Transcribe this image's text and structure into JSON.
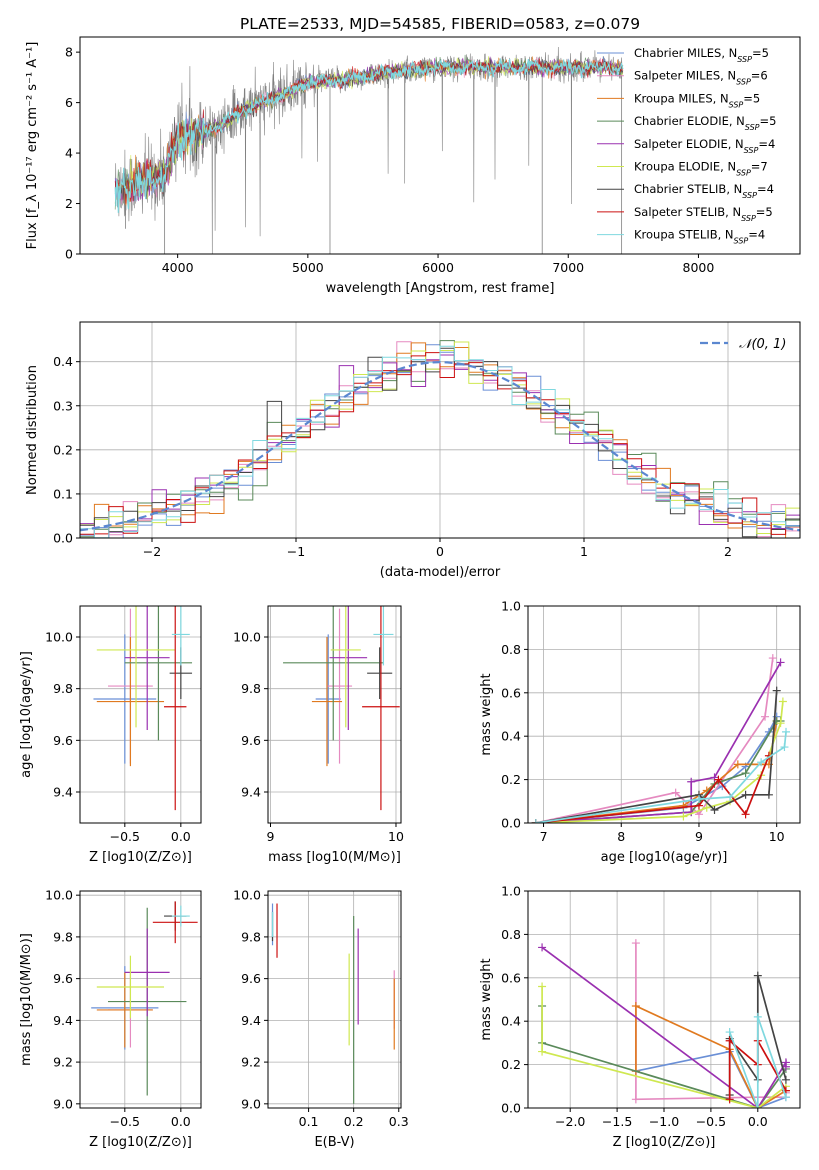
{
  "figure": {
    "title": "PLATE=2533, MJD=54585, FIBERID=0583, z=0.079"
  },
  "colors": {
    "Chabrier MILES": "#6a8fd6",
    "Salpeter MILES": "#e58ac0",
    "Kroupa MILES": "#e07a20",
    "Chabrier ELODIE": "#5a8a5a",
    "Salpeter ELODIE": "#9a30b0",
    "Kroupa ELODIE": "#cfe850",
    "Chabrier STELIB": "#444444",
    "Salpeter STELIB": "#cc1111",
    "Kroupa STELIB": "#7fd8df"
  },
  "chart_data": [
    {
      "id": "spectrum",
      "type": "line",
      "xlabel": "wavelength [Angstrom, rest frame]",
      "ylabel": "Flux [f_λ 10⁻¹⁷ erg cm⁻² s⁻¹ A⁻¹]",
      "xlim": [
        3250,
        8780
      ],
      "ylim": [
        0,
        8.6
      ],
      "xticks": [
        4000,
        5000,
        6000,
        7000,
        8000
      ],
      "yticks": [
        0,
        2,
        4,
        6,
        8
      ],
      "grid": false,
      "legend_position": "right",
      "data_color": "#808080",
      "continuum": {
        "x": [
          3520,
          3700,
          3900,
          4000,
          4300,
          4500,
          4800,
          5000,
          5300,
          5600,
          6000,
          6500,
          7000,
          7300,
          7420
        ],
        "y": [
          2.6,
          2.8,
          3.2,
          4.6,
          5.0,
          5.7,
          6.3,
          6.8,
          6.9,
          7.2,
          7.4,
          7.4,
          7.4,
          7.4,
          7.3
        ]
      },
      "xrange_data": [
        3520,
        7420
      ],
      "series": [
        {
          "name": "Chabrier MILES, N_SSP=5"
        },
        {
          "name": "Salpeter MILES, N_SSP=6"
        },
        {
          "name": "Kroupa MILES, N_SSP=5"
        },
        {
          "name": "Chabrier ELODIE, N_SSP=5"
        },
        {
          "name": "Salpeter ELODIE, N_SSP=4"
        },
        {
          "name": "Kroupa ELODIE, N_SSP=7"
        },
        {
          "name": "Chabrier STELIB, N_SSP=4"
        },
        {
          "name": "Salpeter STELIB, N_SSP=5"
        },
        {
          "name": "Kroupa STELIB, N_SSP=4"
        }
      ]
    },
    {
      "id": "residuals",
      "type": "line",
      "xlabel": "(data-model)/error",
      "ylabel": "Normed distribution",
      "xlim": [
        -2.5,
        2.5
      ],
      "ylim": [
        0,
        0.49
      ],
      "xticks": [
        -2,
        -1,
        0,
        1,
        2
      ],
      "yticks": [
        0.0,
        0.1,
        0.2,
        0.3,
        0.4
      ],
      "grid": true,
      "legend_position": "top-right",
      "gaussian_label": "𝒩(0, 1)",
      "gaussian_color": "#5b87d0"
    },
    {
      "id": "age_vs_Z",
      "type": "scatter",
      "xlabel": "Z [log10(Z/Z⊙)]",
      "ylabel": "age [log10(age/yr)]",
      "xlim": [
        -0.9,
        0.18
      ],
      "ylim": [
        9.28,
        10.12
      ],
      "xticks": [
        -0.5,
        0.0
      ],
      "yticks": [
        9.4,
        9.6,
        9.8,
        10.0
      ],
      "grid": true,
      "points": [
        {
          "name": "Chabrier MILES",
          "x": -0.5,
          "y": 9.76,
          "xerr": 0.28,
          "yerr": 0.25
        },
        {
          "name": "Salpeter MILES",
          "x": -0.45,
          "y": 9.81,
          "xerr": 0.2,
          "yerr": 0.3
        },
        {
          "name": "Kroupa MILES",
          "x": -0.45,
          "y": 9.75,
          "xerr": 0.3,
          "yerr": 0.25
        },
        {
          "name": "Chabrier ELODIE",
          "x": -0.2,
          "y": 9.9,
          "xerr": 0.3,
          "yerr": 0.3
        },
        {
          "name": "Salpeter ELODIE",
          "x": -0.3,
          "y": 9.92,
          "xerr": 0.2,
          "yerr": 0.28
        },
        {
          "name": "Kroupa ELODIE",
          "x": -0.4,
          "y": 9.95,
          "xerr": 0.35,
          "yerr": 0.3
        },
        {
          "name": "Chabrier STELIB",
          "x": 0.0,
          "y": 9.86,
          "xerr": 0.1,
          "yerr": 0.1
        },
        {
          "name": "Salpeter STELIB",
          "x": -0.05,
          "y": 9.73,
          "xerr": 0.1,
          "yerr": 0.4
        },
        {
          "name": "Kroupa STELIB",
          "x": 0.0,
          "y": 10.01,
          "xerr": 0.08,
          "yerr": 0.12
        }
      ]
    },
    {
      "id": "age_vs_mass",
      "type": "scatter",
      "xlabel": "mass [log10(M/M⊙)]",
      "ylabel": "",
      "xlim": [
        8.98,
        10.04
      ],
      "ylim": [
        9.28,
        10.12
      ],
      "xticks": [
        9,
        10
      ],
      "yticks": [
        9.4,
        9.6,
        9.8,
        10.0
      ],
      "grid": true,
      "points": [
        {
          "name": "Chabrier MILES",
          "x": 9.46,
          "y": 9.76,
          "xerr": 0.1,
          "yerr": 0.25
        },
        {
          "name": "Salpeter MILES",
          "x": 9.55,
          "y": 9.81,
          "xerr": 0.1,
          "yerr": 0.3
        },
        {
          "name": "Kroupa MILES",
          "x": 9.45,
          "y": 9.75,
          "xerr": 0.12,
          "yerr": 0.25
        },
        {
          "name": "Chabrier ELODIE",
          "x": 9.5,
          "y": 9.9,
          "xerr": 0.4,
          "yerr": 0.3
        },
        {
          "name": "Salpeter ELODIE",
          "x": 9.62,
          "y": 9.92,
          "xerr": 0.15,
          "yerr": 0.28
        },
        {
          "name": "Kroupa ELODIE",
          "x": 9.6,
          "y": 9.95,
          "xerr": 0.12,
          "yerr": 0.3
        },
        {
          "name": "Chabrier STELIB",
          "x": 9.87,
          "y": 9.86,
          "xerr": 0.1,
          "yerr": 0.1
        },
        {
          "name": "Salpeter STELIB",
          "x": 9.88,
          "y": 9.73,
          "xerr": 0.15,
          "yerr": 0.4
        },
        {
          "name": "Kroupa STELIB",
          "x": 9.9,
          "y": 10.01,
          "xerr": 0.08,
          "yerr": 0.12
        }
      ]
    },
    {
      "id": "weight_vs_age",
      "type": "line",
      "xlabel": "age [log10(age/yr)]",
      "ylabel": "mass weight",
      "xlim": [
        6.8,
        10.3
      ],
      "ylim": [
        0,
        1
      ],
      "xticks": [
        7,
        8,
        9,
        10
      ],
      "yticks": [
        0.0,
        0.2,
        0.4,
        0.6,
        0.8,
        1.0
      ],
      "grid": true,
      "series": [
        {
          "name": "Chabrier MILES",
          "x": [
            6.9,
            8.8,
            9.3,
            9.6,
            9.9,
            10.0
          ],
          "y": [
            0.0,
            0.07,
            0.17,
            0.26,
            0.42,
            0.49
          ]
        },
        {
          "name": "Salpeter MILES",
          "x": [
            6.9,
            8.7,
            9.0,
            9.85,
            9.95
          ],
          "y": [
            0.0,
            0.14,
            0.04,
            0.49,
            0.76
          ]
        },
        {
          "name": "Kroupa MILES",
          "x": [
            6.9,
            8.8,
            9.1,
            9.5,
            9.9,
            10.0
          ],
          "y": [
            0.0,
            0.08,
            0.15,
            0.27,
            0.27,
            0.47
          ]
        },
        {
          "name": "Chabrier ELODIE",
          "x": [
            6.9,
            8.9,
            9.2,
            9.6,
            10.0,
            10.05
          ],
          "y": [
            0.0,
            0.05,
            0.18,
            0.23,
            0.47,
            0.47
          ]
        },
        {
          "name": "Salpeter ELODIE",
          "x": [
            6.9,
            8.9,
            8.9,
            9.2,
            10.05
          ],
          "y": [
            0.0,
            0.05,
            0.19,
            0.21,
            0.74
          ]
        },
        {
          "name": "Kroupa ELODIE",
          "x": [
            6.9,
            8.8,
            9.1,
            9.4,
            9.8,
            10.05,
            10.08
          ],
          "y": [
            0.0,
            0.03,
            0.07,
            0.1,
            0.22,
            0.46,
            0.56
          ]
        },
        {
          "name": "Chabrier STELIB",
          "x": [
            6.9,
            9.0,
            9.2,
            9.6,
            9.9,
            10.0
          ],
          "y": [
            0.0,
            0.13,
            0.06,
            0.13,
            0.13,
            0.61
          ]
        },
        {
          "name": "Salpeter STELIB",
          "x": [
            6.9,
            9.0,
            9.25,
            9.6,
            9.9
          ],
          "y": [
            0.0,
            0.08,
            0.2,
            0.04,
            0.31
          ]
        },
        {
          "name": "Kroupa STELIB",
          "x": [
            6.9,
            9.0,
            9.4,
            9.8,
            10.1,
            10.12
          ],
          "y": [
            0.0,
            0.11,
            0.12,
            0.28,
            0.35,
            0.42
          ]
        }
      ]
    },
    {
      "id": "mass_vs_Z",
      "type": "scatter",
      "xlabel": "Z [log10(Z/Z⊙)]",
      "ylabel": "mass [log10(M/M⊙)]",
      "xlim": [
        -0.9,
        0.18
      ],
      "ylim": [
        8.98,
        10.02
      ],
      "xticks": [
        -0.5,
        0.0
      ],
      "yticks": [
        9.0,
        9.2,
        9.4,
        9.6,
        9.8,
        10.0
      ],
      "grid": true,
      "points": [
        {
          "name": "Chabrier MILES",
          "x": -0.5,
          "y": 9.46,
          "xerr": 0.3,
          "yerr": 0.2
        },
        {
          "name": "Salpeter MILES",
          "x": -0.45,
          "y": 9.45,
          "xerr": 0.2,
          "yerr": 0.18
        },
        {
          "name": "Kroupa MILES",
          "x": -0.5,
          "y": 9.45,
          "xerr": 0.25,
          "yerr": 0.18
        },
        {
          "name": "Chabrier ELODIE",
          "x": -0.3,
          "y": 9.49,
          "xerr": 0.35,
          "yerr": 0.45
        },
        {
          "name": "Salpeter ELODIE",
          "x": -0.3,
          "y": 9.63,
          "xerr": 0.2,
          "yerr": 0.21
        },
        {
          "name": "Kroupa ELODIE",
          "x": -0.45,
          "y": 9.56,
          "xerr": 0.3,
          "yerr": 0.15
        },
        {
          "name": "Chabrier STELIB",
          "x": -0.05,
          "y": 9.9,
          "xerr": 0.1,
          "yerr": 0.07
        },
        {
          "name": "Salpeter STELIB",
          "x": -0.05,
          "y": 9.87,
          "xerr": 0.2,
          "yerr": 0.1
        },
        {
          "name": "Kroupa STELIB",
          "x": 0.0,
          "y": 9.9,
          "xerr": 0.08,
          "yerr": 0.05
        }
      ]
    },
    {
      "id": "mass_vs_ebv",
      "type": "scatter",
      "xlabel": "E(B-V)",
      "ylabel": "",
      "xlim": [
        0.01,
        0.305
      ],
      "ylim": [
        8.98,
        10.02
      ],
      "xticks": [
        0.1,
        0.2,
        0.3
      ],
      "yticks": [
        9.0,
        9.2,
        9.4,
        9.6,
        9.8,
        10.0
      ],
      "grid": true,
      "points": [
        {
          "name": "Chabrier MILES",
          "x": 0.02,
          "y": 9.86,
          "yerr": 0.1
        },
        {
          "name": "Salpeter MILES",
          "x": 0.29,
          "y": 9.5,
          "yerr": 0.14
        },
        {
          "name": "Kroupa MILES",
          "x": 0.29,
          "y": 9.43,
          "yerr": 0.17
        },
        {
          "name": "Chabrier ELODIE",
          "x": 0.2,
          "y": 9.45,
          "yerr": 0.45
        },
        {
          "name": "Salpeter ELODIE",
          "x": 0.21,
          "y": 9.61,
          "yerr": 0.23
        },
        {
          "name": "Kroupa ELODIE",
          "x": 0.19,
          "y": 9.5,
          "yerr": 0.22
        },
        {
          "name": "Chabrier STELIB",
          "x": 0.02,
          "y": 9.85,
          "yerr": 0.07
        },
        {
          "name": "Salpeter STELIB",
          "x": 0.03,
          "y": 9.83,
          "yerr": 0.13
        },
        {
          "name": "Kroupa STELIB",
          "x": 0.02,
          "y": 9.86,
          "yerr": 0.06
        }
      ]
    },
    {
      "id": "weight_vs_Z",
      "type": "line",
      "xlabel": "Z [log10(Z/Z⊙)]",
      "ylabel": "mass weight",
      "xlim": [
        -2.45,
        0.45
      ],
      "ylim": [
        0,
        1
      ],
      "xticks": [
        -2.0,
        -1.5,
        -1.0,
        -0.5,
        0.0
      ],
      "yticks": [
        0.0,
        0.2,
        0.4,
        0.6,
        0.8,
        1.0
      ],
      "grid": true,
      "series": [
        {
          "name": "Chabrier MILES",
          "x": [
            -1.3,
            -0.3,
            0.0,
            0.3
          ],
          "y": [
            0.17,
            0.26,
            0.0,
            0.05
          ]
        },
        {
          "name": "Salpeter MILES",
          "x": [
            -1.3,
            -1.3,
            0.0,
            0.3,
            0.3
          ],
          "y": [
            0.76,
            0.04,
            0.05,
            0.05,
            0.07
          ]
        },
        {
          "name": "Kroupa MILES",
          "x": [
            -1.3,
            -1.3,
            -0.3,
            0.0,
            0.3
          ],
          "y": [
            0.17,
            0.47,
            0.27,
            0.0,
            0.08
          ]
        },
        {
          "name": "Chabrier ELODIE",
          "x": [
            -2.3,
            -2.3,
            0.0,
            0.3
          ],
          "y": [
            0.47,
            0.3,
            0.0,
            0.18
          ]
        },
        {
          "name": "Salpeter ELODIE",
          "x": [
            -2.3,
            0.0,
            0.3,
            0.3
          ],
          "y": [
            0.74,
            0.0,
            0.21,
            0.19
          ]
        },
        {
          "name": "Kroupa ELODIE",
          "x": [
            -2.3,
            -2.3,
            0.0,
            0.3
          ],
          "y": [
            0.56,
            0.26,
            0.0,
            0.1
          ]
        },
        {
          "name": "Chabrier STELIB",
          "x": [
            -0.3,
            -0.3,
            0.0,
            0.0,
            0.3
          ],
          "y": [
            0.06,
            0.32,
            0.13,
            0.61,
            0.13
          ]
        },
        {
          "name": "Salpeter STELIB",
          "x": [
            -0.3,
            -0.3,
            0.0,
            0.0,
            0.3
          ],
          "y": [
            0.04,
            0.31,
            0.2,
            0.31,
            0.08
          ]
        },
        {
          "name": "Kroupa STELIB",
          "x": [
            -0.3,
            0.0,
            0.0,
            0.3
          ],
          "y": [
            0.35,
            0.0,
            0.42,
            0.05
          ]
        }
      ]
    }
  ]
}
